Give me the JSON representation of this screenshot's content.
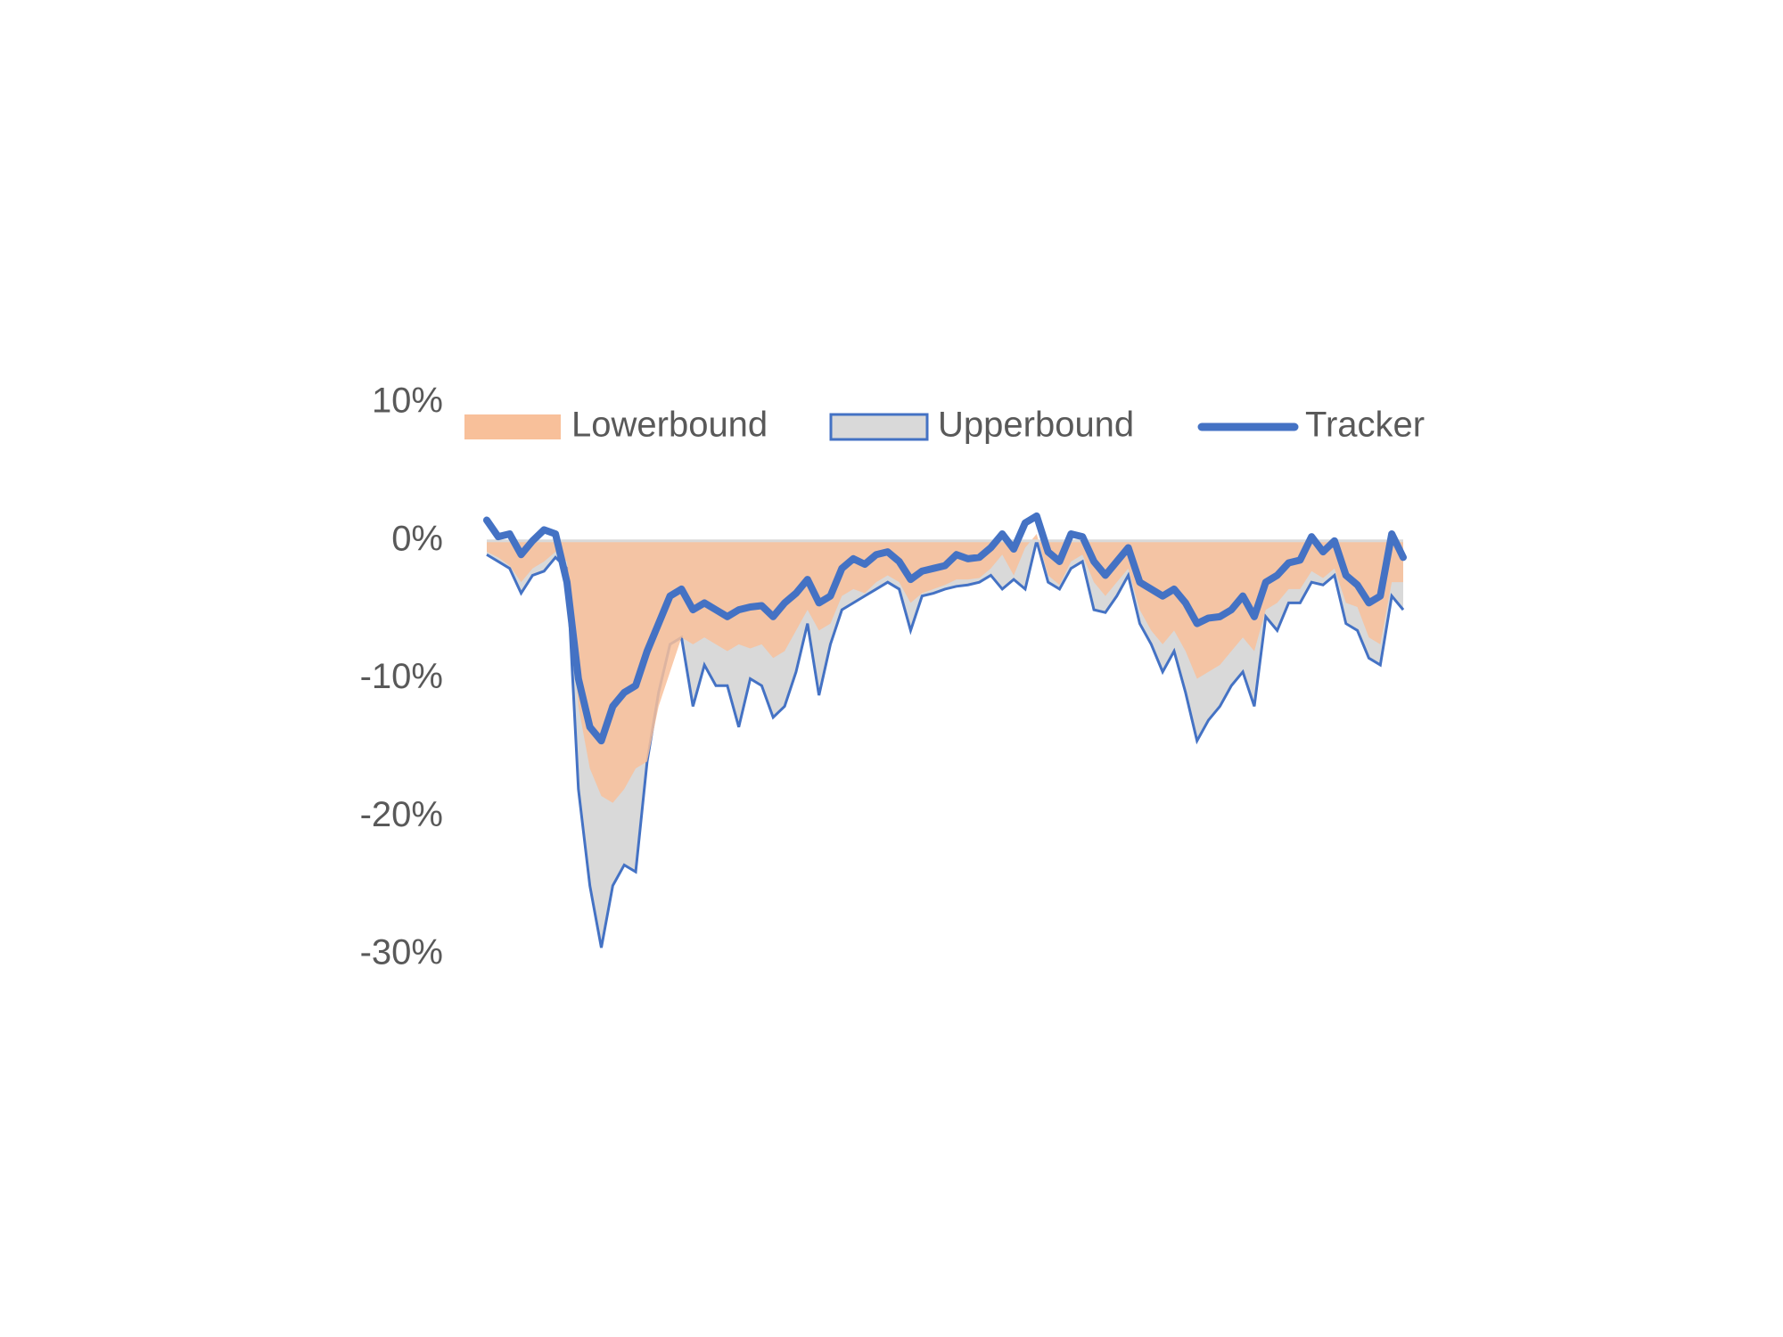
{
  "chart_data": {
    "type": "area-line",
    "ylim": [
      -30,
      10
    ],
    "yticks": [
      {
        "value": 10,
        "label": "10%"
      },
      {
        "value": 0,
        "label": "0%"
      },
      {
        "value": -10,
        "label": "-10%"
      },
      {
        "value": -20,
        "label": "-20%"
      },
      {
        "value": -30,
        "label": "-30%"
      }
    ],
    "legend": "top",
    "series": [
      {
        "name": "Lowerbound",
        "kind": "area",
        "color": "#f8c09a",
        "values": [
          -0.8,
          -1.2,
          -1.8,
          -3,
          -2,
          -1.5,
          -0.8,
          -1.5,
          -12,
          -16.5,
          -18.5,
          -19,
          -18,
          -16.5,
          -16,
          -12,
          -9.5,
          -7,
          -7.5,
          -7,
          -7.5,
          -8,
          -7.5,
          -7.8,
          -7.5,
          -8.5,
          -8,
          -6.5,
          -5,
          -6.5,
          -6,
          -4,
          -3.5,
          -3.8,
          -3,
          -2.5,
          -3,
          -4.5,
          -3.8,
          -3.5,
          -3.2,
          -2.8,
          -2.8,
          -2.7,
          -2,
          -1,
          -2.5,
          -0.5,
          0.5,
          -2.5,
          -3.2,
          -1.5,
          -1,
          -3,
          -4,
          -3,
          -2,
          -5,
          -6.5,
          -7.5,
          -6.5,
          -8,
          -10,
          -9.5,
          -9,
          -8,
          -7,
          -8,
          -5,
          -4.5,
          -3.5,
          -3.5,
          -2.2,
          -2.7,
          -2,
          -4.5,
          -4.8,
          -7,
          -7.5,
          -3,
          -3
        ]
      },
      {
        "name": "Upperbound",
        "kind": "area",
        "color": "#d9d9d9",
        "outline": "#4472c4",
        "values": [
          -1,
          -1.5,
          -2,
          -3.8,
          -2.5,
          -2.2,
          -1.2,
          -2,
          -18,
          -25,
          -29.5,
          -25,
          -23.5,
          -24,
          -16,
          -11,
          -7.5,
          -7,
          -12,
          -9,
          -10.5,
          -10.5,
          -13.5,
          -10,
          -10.5,
          -12.8,
          -12,
          -9.5,
          -6,
          -11.2,
          -7.5,
          -5,
          -4.5,
          -4,
          -3.5,
          -3,
          -3.5,
          -6.5,
          -4,
          -3.8,
          -3.5,
          -3.3,
          -3.2,
          -3,
          -2.5,
          -3.5,
          -2.8,
          -3.5,
          0,
          -3,
          -3.5,
          -2,
          -1.5,
          -5,
          -5.2,
          -4,
          -2.5,
          -6,
          -7.5,
          -9.5,
          -8,
          -11,
          -14.5,
          -13,
          -12,
          -10.5,
          -9.5,
          -12,
          -5.5,
          -6.5,
          -4.5,
          -4.5,
          -3,
          -3.2,
          -2.5,
          -6,
          -6.5,
          -8.5,
          -9,
          -4,
          -5
        ]
      },
      {
        "name": "Tracker",
        "kind": "line",
        "color": "#4472c4",
        "values": [
          1.5,
          0.3,
          0.5,
          -1,
          0,
          0.8,
          0.5,
          -3,
          -10,
          -13.5,
          -14.5,
          -12,
          -11,
          -10.5,
          -8,
          -6,
          -4,
          -3.5,
          -5,
          -4.5,
          -5,
          -5.5,
          -5,
          -4.8,
          -4.7,
          -5.5,
          -4.5,
          -3.8,
          -2.8,
          -4.5,
          -4,
          -2,
          -1.3,
          -1.7,
          -1,
          -0.8,
          -1.5,
          -2.8,
          -2.2,
          -2,
          -1.8,
          -1,
          -1.3,
          -1.2,
          -0.5,
          0.5,
          -0.6,
          1.3,
          1.8,
          -0.8,
          -1.5,
          0.5,
          0.3,
          -1.5,
          -2.5,
          -1.5,
          -0.5,
          -3,
          -3.5,
          -4,
          -3.5,
          -4.5,
          -6,
          -5.6,
          -5.5,
          -5,
          -4,
          -5.5,
          -3,
          -2.5,
          -1.6,
          -1.4,
          0.3,
          -0.8,
          0,
          -2.5,
          -3.2,
          -4.5,
          -4,
          0.5,
          -1.2
        ]
      }
    ]
  }
}
